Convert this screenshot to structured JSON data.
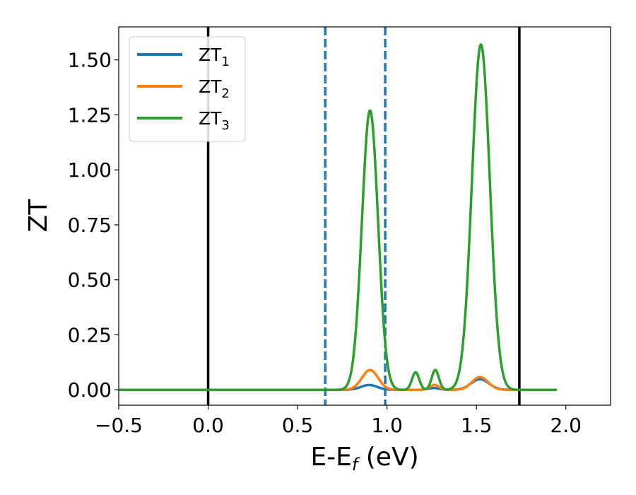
{
  "chart_data": {
    "type": "line",
    "xlabel": "E-E",
    "xlabel_sub": "f",
    "xlabel_unit": " (eV)",
    "ylabel": "ZT",
    "xlim": [
      -0.5,
      2.25
    ],
    "ylim": [
      -0.07,
      1.65
    ],
    "xticks": [
      -0.5,
      0.0,
      0.5,
      1.0,
      1.5,
      2.0
    ],
    "xtick_labels": [
      "−0.5",
      "0.0",
      "0.5",
      "1.0",
      "1.5",
      "2.0"
    ],
    "yticks": [
      0.0,
      0.25,
      0.5,
      0.75,
      1.0,
      1.25,
      1.5
    ],
    "ytick_labels": [
      "0.00",
      "0.25",
      "0.50",
      "0.75",
      "1.00",
      "1.25",
      "1.50"
    ],
    "grid": false,
    "legend_position": "top-left",
    "x_range": [
      -0.5,
      1.95
    ],
    "vlines_solid": [
      0.0,
      1.74
    ],
    "vlines_dashed": [
      0.655,
      0.99
    ],
    "vline_solid_color": "#000000",
    "vline_dashed_color": "#1f77b4",
    "series": [
      {
        "name": "ZT",
        "name_sub": "1",
        "color": "#1f77b4",
        "peaks": [
          {
            "center": 0.9,
            "height": 0.022,
            "width": 0.045
          },
          {
            "center": 1.26,
            "height": 0.008,
            "width": 0.03
          },
          {
            "center": 1.52,
            "height": 0.048,
            "width": 0.05
          }
        ]
      },
      {
        "name": "ZT",
        "name_sub": "2",
        "color": "#ff7f0e",
        "peaks": [
          {
            "center": 0.905,
            "height": 0.09,
            "width": 0.045
          },
          {
            "center": 1.265,
            "height": 0.022,
            "width": 0.025
          },
          {
            "center": 1.52,
            "height": 0.058,
            "width": 0.045
          }
        ]
      },
      {
        "name": "ZT",
        "name_sub": "3",
        "color": "#2ca02c",
        "peaks": [
          {
            "center": 0.905,
            "height": 1.27,
            "width": 0.045
          },
          {
            "center": 1.16,
            "height": 0.08,
            "width": 0.02
          },
          {
            "center": 1.27,
            "height": 0.09,
            "width": 0.02
          },
          {
            "center": 1.525,
            "height": 1.57,
            "width": 0.05
          }
        ]
      }
    ]
  }
}
